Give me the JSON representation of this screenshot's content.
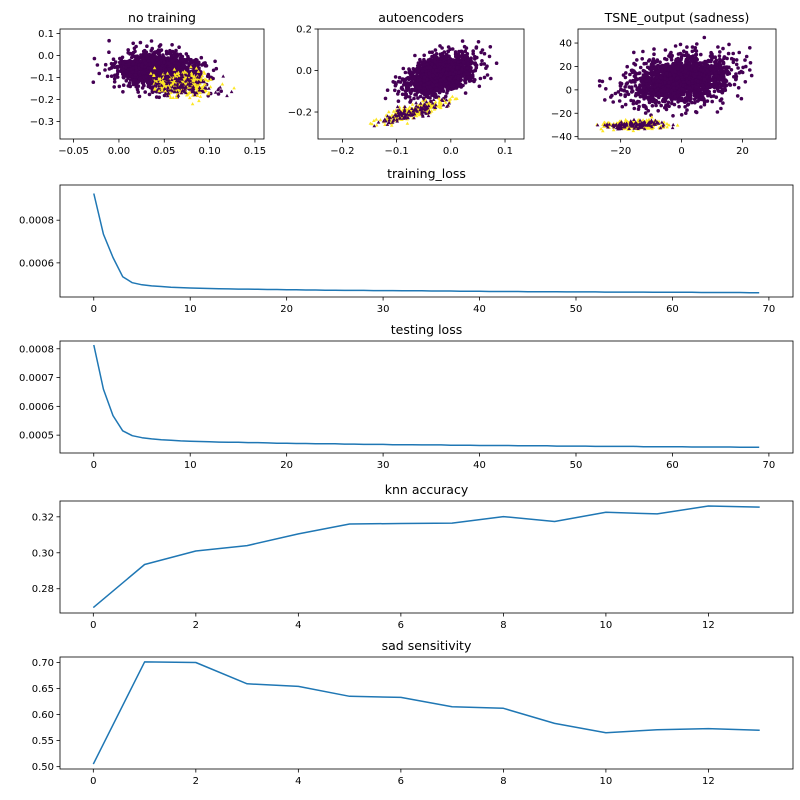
{
  "chart_data": [
    {
      "type": "scatter",
      "title": "no training",
      "xlabel": "",
      "ylabel": "",
      "xlim": [
        -0.065,
        0.16
      ],
      "ylim": [
        -0.38,
        0.12
      ],
      "xticks": [
        -0.05,
        0.0,
        0.05,
        0.1,
        0.15
      ],
      "xtick_labels": [
        "−0.05",
        "0.00",
        "0.05",
        "0.10",
        "0.15"
      ],
      "yticks": [
        0.1,
        0.0,
        -0.1,
        -0.2,
        -0.3
      ],
      "ytick_labels": [
        "0.1",
        "0.0",
        "−0.1",
        "−0.2",
        "−0.3"
      ],
      "colors": {
        "majority": "#440154",
        "minority": "#fde725"
      },
      "clusters": {
        "majority": {
          "center": [
            0.045,
            -0.07
          ],
          "spread": [
            0.04,
            0.07
          ],
          "tilt": -0.25
        },
        "minority": {
          "center": [
            0.07,
            -0.13
          ],
          "spread": [
            0.03,
            0.05
          ],
          "tilt": -0.3
        }
      }
    },
    {
      "type": "scatter",
      "title": "autoencoders",
      "xlabel": "",
      "ylabel": "",
      "xlim": [
        -0.245,
        0.135
      ],
      "ylim": [
        -0.33,
        0.2
      ],
      "xticks": [
        -0.2,
        -0.1,
        0.0,
        0.1
      ],
      "xtick_labels": [
        "−0.2",
        "−0.1",
        "0.0",
        "0.1"
      ],
      "yticks": [
        0.2,
        0.0,
        -0.2
      ],
      "ytick_labels": [
        "0.2",
        "0.0",
        "−0.2"
      ],
      "colors": {
        "majority": "#440154",
        "minority": "#fde725"
      },
      "clusters": {
        "majority": {
          "center": [
            -0.02,
            -0.02
          ],
          "spread": [
            0.07,
            0.06
          ],
          "tilt": 0.9
        },
        "minority": {
          "center": [
            -0.07,
            -0.2
          ],
          "spread": [
            0.06,
            0.025
          ],
          "tilt": 0.55
        }
      }
    },
    {
      "type": "scatter",
      "title": "TSNE_output (sadness)",
      "xlabel": "",
      "ylabel": "",
      "xlim": [
        -34,
        31
      ],
      "ylim": [
        -42,
        52
      ],
      "xticks": [
        -20,
        0,
        20
      ],
      "xtick_labels": [
        "−20",
        "0",
        "20"
      ],
      "yticks": [
        40,
        20,
        0,
        -20,
        -40
      ],
      "ytick_labels": [
        "40",
        "20",
        "0",
        "−20",
        "−40"
      ],
      "colors": {
        "majority": "#440154",
        "minority": "#fde725"
      },
      "clusters": {
        "majority": {
          "center": [
            0,
            8
          ],
          "spread": [
            16,
            17
          ],
          "tilt": 0.55
        },
        "minority": {
          "center": [
            -16,
            -30
          ],
          "spread": [
            9,
            3.5
          ],
          "tilt": 0.05
        }
      }
    },
    {
      "type": "line",
      "title": "training_loss",
      "xlabel": "",
      "ylabel": "",
      "xlim": [
        -3.5,
        72.5
      ],
      "ylim": [
        0.00044,
        0.000965
      ],
      "xticks": [
        0,
        10,
        20,
        30,
        40,
        50,
        60,
        70
      ],
      "xtick_labels": [
        "0",
        "10",
        "20",
        "30",
        "40",
        "50",
        "60",
        "70"
      ],
      "yticks": [
        0.0006,
        0.0008
      ],
      "ytick_labels": [
        "0.0006",
        "0.0008"
      ],
      "x_start": 0,
      "values": [
        0.000925,
        0.000735,
        0.000625,
        0.000535,
        0.000507,
        0.000497,
        0.000492,
        0.000489,
        0.000486,
        0.000484,
        0.000482,
        0.000481,
        0.00048,
        0.000479,
        0.000478,
        0.000477,
        0.000477,
        0.000476,
        0.000475,
        0.000475,
        0.000474,
        0.000474,
        0.000473,
        0.000473,
        0.000472,
        0.000472,
        0.000471,
        0.000471,
        0.000471,
        0.00047,
        0.00047,
        0.00047,
        0.000469,
        0.000469,
        0.000469,
        0.000468,
        0.000468,
        0.000468,
        0.000467,
        0.000467,
        0.000467,
        0.000466,
        0.000466,
        0.000466,
        0.000466,
        0.000465,
        0.000465,
        0.000465,
        0.000465,
        0.000464,
        0.000464,
        0.000464,
        0.000464,
        0.000463,
        0.000463,
        0.000463,
        0.000463,
        0.000463,
        0.000462,
        0.000462,
        0.000462,
        0.000462,
        0.000462,
        0.000461,
        0.000461,
        0.000461,
        0.000461,
        0.000461,
        0.00046,
        0.00046
      ]
    },
    {
      "type": "line",
      "title": "testing loss",
      "xlabel": "",
      "ylabel": "",
      "xlim": [
        -3.5,
        72.5
      ],
      "ylim": [
        0.000438,
        0.000827
      ],
      "xticks": [
        0,
        10,
        20,
        30,
        40,
        50,
        60,
        70
      ],
      "xtick_labels": [
        "0",
        "10",
        "20",
        "30",
        "40",
        "50",
        "60",
        "70"
      ],
      "yticks": [
        0.0005,
        0.0006,
        0.0007,
        0.0008
      ],
      "ytick_labels": [
        "0.0005",
        "0.0006",
        "0.0007",
        "0.0008"
      ],
      "x_start": 0,
      "values": [
        0.000813,
        0.00066,
        0.000568,
        0.000515,
        0.000498,
        0.000491,
        0.000487,
        0.000484,
        0.000482,
        0.00048,
        0.000479,
        0.000478,
        0.000477,
        0.000476,
        0.000475,
        0.000475,
        0.000474,
        0.000474,
        0.000473,
        0.000472,
        0.000472,
        0.000471,
        0.000471,
        0.00047,
        0.00047,
        0.00047,
        0.000469,
        0.000469,
        0.000468,
        0.000468,
        0.000468,
        0.000467,
        0.000467,
        0.000467,
        0.000466,
        0.000466,
        0.000466,
        0.000465,
        0.000465,
        0.000465,
        0.000464,
        0.000464,
        0.000464,
        0.000464,
        0.000463,
        0.000463,
        0.000463,
        0.000463,
        0.000462,
        0.000462,
        0.000462,
        0.000462,
        0.000461,
        0.000461,
        0.000461,
        0.000461,
        0.000461,
        0.00046,
        0.00046,
        0.00046,
        0.00046,
        0.00046,
        0.000459,
        0.000459,
        0.000459,
        0.000459,
        0.000459,
        0.000458,
        0.000458,
        0.000458
      ]
    },
    {
      "type": "line",
      "title": "knn accuracy",
      "xlabel": "",
      "ylabel": "",
      "xlim": [
        -0.65,
        13.65
      ],
      "ylim": [
        0.2665,
        0.3288
      ],
      "xticks": [
        0,
        2,
        4,
        6,
        8,
        10,
        12
      ],
      "xtick_labels": [
        "0",
        "2",
        "4",
        "6",
        "8",
        "10",
        "12"
      ],
      "yticks": [
        0.28,
        0.3,
        0.32
      ],
      "ytick_labels": [
        "0.28",
        "0.30",
        "0.32"
      ],
      "x_start": 0,
      "values": [
        0.2695,
        0.2935,
        0.301,
        0.304,
        0.3105,
        0.316,
        0.3163,
        0.3165,
        0.3201,
        0.3174,
        0.3225,
        0.3216,
        0.326,
        0.3254
      ]
    },
    {
      "type": "line",
      "title": "sad sensitivity",
      "xlabel": "",
      "ylabel": "",
      "xlim": [
        -0.65,
        13.65
      ],
      "ylim": [
        0.4955,
        0.7105
      ],
      "xticks": [
        0,
        2,
        4,
        6,
        8,
        10,
        12
      ],
      "xtick_labels": [
        "0",
        "2",
        "4",
        "6",
        "8",
        "10",
        "12"
      ],
      "yticks": [
        0.5,
        0.55,
        0.6,
        0.65,
        0.7
      ],
      "ytick_labels": [
        "0.50",
        "0.55",
        "0.60",
        "0.65",
        "0.70"
      ],
      "x_start": 0,
      "values": [
        0.505,
        0.701,
        0.7,
        0.659,
        0.654,
        0.635,
        0.633,
        0.615,
        0.612,
        0.583,
        0.565,
        0.571,
        0.573,
        0.57
      ]
    }
  ]
}
